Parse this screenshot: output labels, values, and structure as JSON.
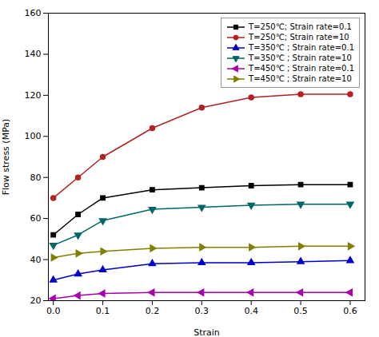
{
  "chart_data": {
    "type": "line",
    "xlabel": "Strain",
    "ylabel": "Flow stress (MPa)",
    "x": [
      0.0,
      0.05,
      0.1,
      0.2,
      0.3,
      0.4,
      0.5,
      0.6
    ],
    "xlim": [
      -0.01,
      0.63
    ],
    "ylim": [
      20,
      160
    ],
    "xticks": [
      {
        "value": 0.0,
        "label": "0.0"
      },
      0.1,
      0.2,
      0.3,
      0.4,
      0.5,
      0.6
    ],
    "yticks": [
      20,
      40,
      60,
      80,
      100,
      120,
      140,
      160
    ],
    "grid": false,
    "legend": "upper right",
    "series": [
      {
        "name": "T=250℃; Strain rate=0.1",
        "color": "#000000",
        "marker": "square",
        "values": [
          52,
          62,
          70,
          74,
          75,
          76,
          76.5,
          76.5
        ]
      },
      {
        "name": "T=250℃; Strain rate=10",
        "color": "#b22222",
        "marker": "circle",
        "values": [
          70,
          80,
          90,
          104,
          114,
          119,
          120.5,
          120.5
        ]
      },
      {
        "name": "T=350℃ ; Strain rate=0.1",
        "color": "#0000cc",
        "marker": "triangle-up",
        "values": [
          30,
          33,
          35,
          38,
          38.5,
          38.5,
          39,
          39.5
        ]
      },
      {
        "name": "T=350℃ ; Strain rate=10",
        "color": "#006666",
        "marker": "triangle-down",
        "values": [
          47,
          52,
          59,
          64.5,
          65.5,
          66.5,
          67,
          67
        ]
      },
      {
        "name": "T=450℃ ; Strain rate=0.1",
        "color": "#aa00aa",
        "marker": "triangle-left",
        "values": [
          21,
          22.5,
          23.5,
          24,
          24,
          24,
          24,
          24
        ]
      },
      {
        "name": "T=450℃ ; Strain rate=10",
        "color": "#808000",
        "marker": "triangle-right",
        "values": [
          41,
          43,
          44,
          45.5,
          46,
          46,
          46.5,
          46.5
        ]
      }
    ]
  }
}
